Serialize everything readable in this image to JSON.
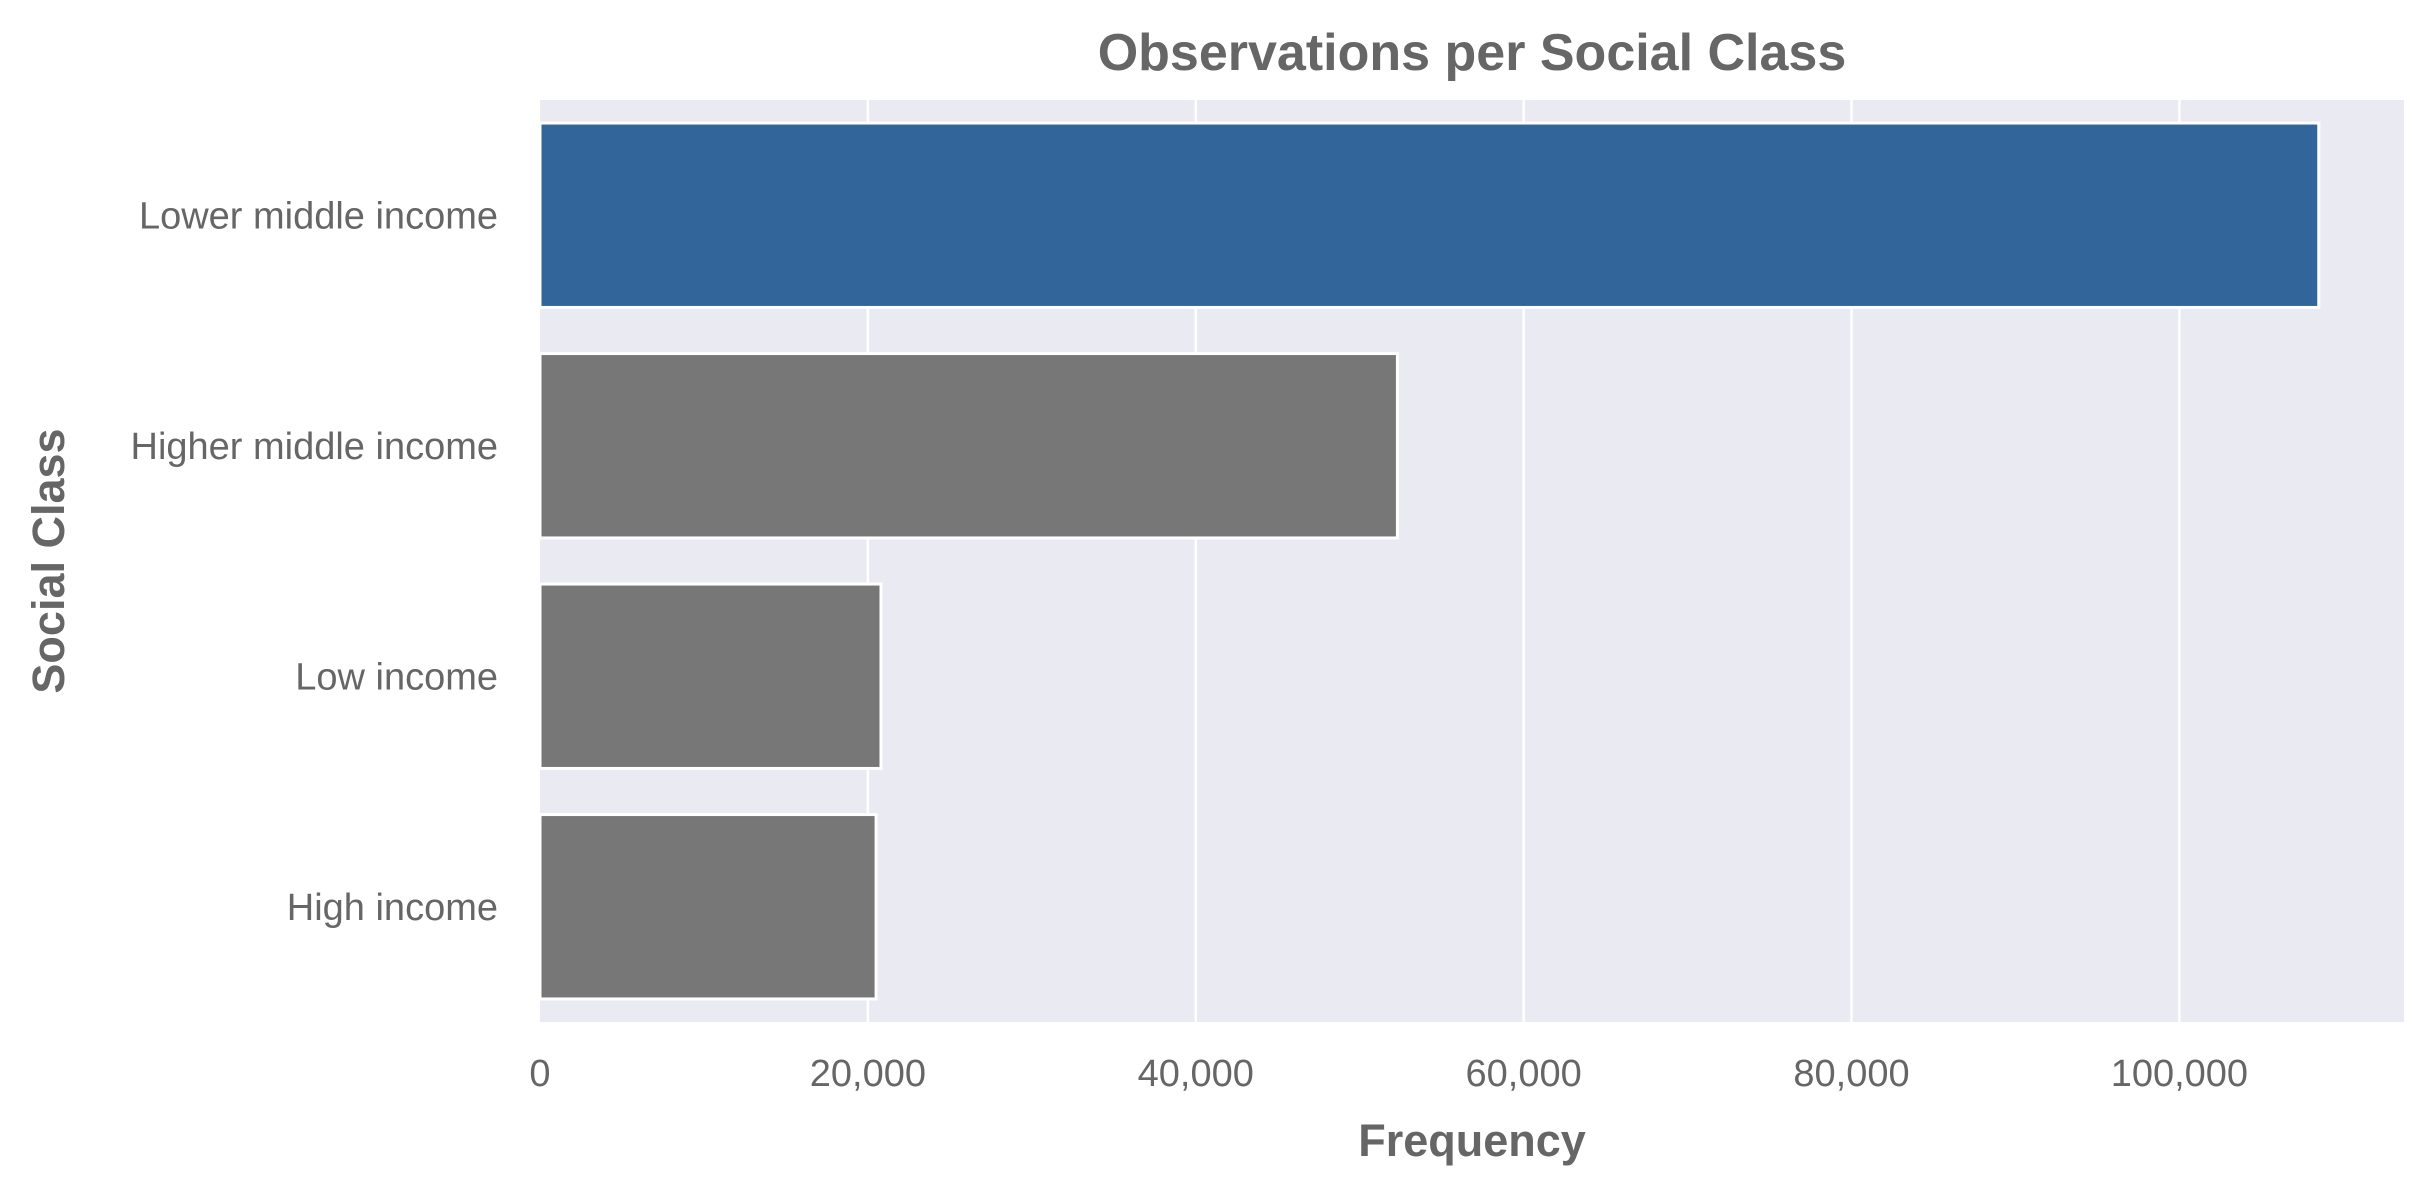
{
  "chart_data": {
    "type": "bar",
    "orientation": "horizontal",
    "title": "Observations per Social Class",
    "xlabel": "Frequency",
    "ylabel": "Social Class",
    "categories": [
      "Lower middle income",
      "Higher middle income",
      "Low income",
      "High income"
    ],
    "values": [
      108500,
      52300,
      20800,
      20500
    ],
    "xlim": [
      0,
      113700
    ],
    "xticks": [
      0,
      20000,
      40000,
      60000,
      80000,
      100000
    ],
    "xtick_labels": [
      "0",
      "20,000",
      "40,000",
      "60,000",
      "80,000",
      "100,000"
    ],
    "grid": true,
    "colors": {
      "highlight": "#32659a",
      "default": "#777777",
      "background": "#eaeaf2",
      "grid": "#ffffff"
    },
    "highlight_index": 0
  }
}
